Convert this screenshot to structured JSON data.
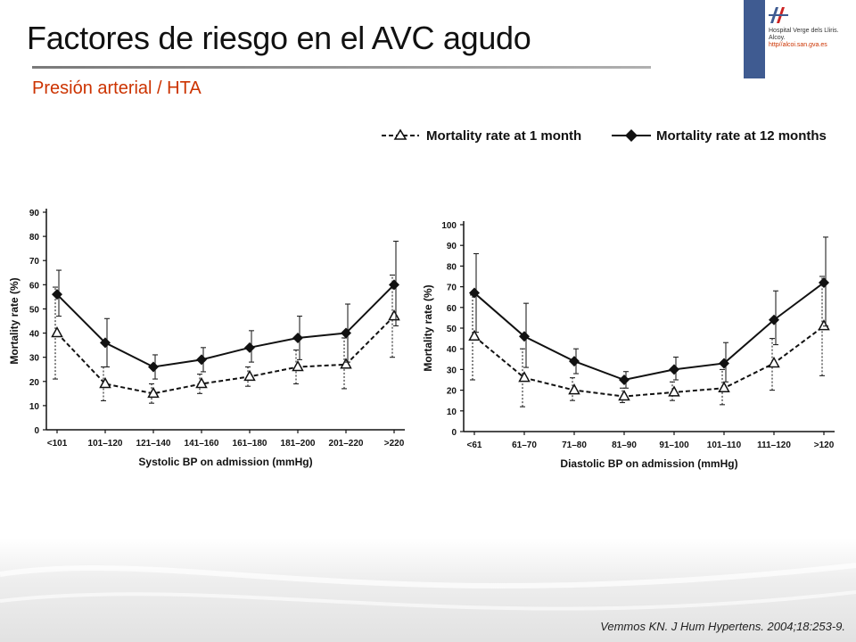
{
  "slide": {
    "title": "Factores de riesgo en el AVC agudo",
    "subtitle": "Presión arterial / HTA",
    "citation": "Vemmos KN. J Hum Hypertens. 2004;18:253-9.",
    "title_rule_color": "#8a8a8a",
    "subtitle_color": "#cc3300"
  },
  "logo": {
    "line1": "Hospital Verge dels Lliris.",
    "line2": "Alcoy.",
    "url": "http//alcoi.san.gva.es",
    "icon": "hospital-logo-icon",
    "color": "#3f5b91"
  },
  "legend": {
    "items": [
      {
        "label": "Mortality rate at 1 month",
        "marker": "open-triangle"
      },
      {
        "label": "Mortality rate at 12 months",
        "marker": "filled-diamond"
      }
    ]
  },
  "chart_data": [
    {
      "type": "line",
      "xlabel": "Systolic BP on admission (mmHg)",
      "ylabel": "Mortality rate (%)",
      "categories": [
        "<101",
        "101–120",
        "121–140",
        "141–160",
        "161–180",
        "181–200",
        "201–220",
        ">220"
      ],
      "ylim": [
        0,
        90
      ],
      "yticks": [
        0,
        10,
        20,
        30,
        40,
        50,
        60,
        70,
        80,
        90
      ],
      "grid": false,
      "legend_position": "top-right",
      "series": [
        {
          "name": "Mortality rate at 1 month",
          "marker": "open-triangle",
          "line": "dashed",
          "values": [
            40,
            19,
            15,
            19,
            22,
            26,
            27,
            47
          ],
          "err_low": [
            21,
            12,
            11,
            15,
            18,
            19,
            17,
            30
          ],
          "err_high": [
            59,
            26,
            19,
            23,
            26,
            33,
            38,
            64
          ]
        },
        {
          "name": "Mortality rate at 12 months",
          "marker": "filled-diamond",
          "line": "solid",
          "values": [
            56,
            36,
            26,
            29,
            34,
            38,
            40,
            60
          ],
          "err_low": [
            47,
            26,
            21,
            24,
            28,
            29,
            28,
            43
          ],
          "err_high": [
            66,
            46,
            31,
            34,
            41,
            47,
            52,
            78
          ]
        }
      ]
    },
    {
      "type": "line",
      "xlabel": "Diastolic BP on admission (mmHg)",
      "ylabel": "Mortality rate (%)",
      "categories": [
        "<61",
        "61–70",
        "71–80",
        "81–90",
        "91–100",
        "101–110",
        "111–120",
        ">120"
      ],
      "ylim": [
        0,
        100
      ],
      "yticks": [
        0,
        10,
        20,
        30,
        40,
        50,
        60,
        70,
        80,
        90,
        100
      ],
      "grid": false,
      "legend_position": "top-right",
      "series": [
        {
          "name": "Mortality rate at 1 month",
          "marker": "open-triangle",
          "line": "dashed",
          "values": [
            46,
            26,
            20,
            17,
            19,
            21,
            33,
            51
          ],
          "err_low": [
            25,
            12,
            15,
            14,
            15,
            13,
            20,
            27
          ],
          "err_high": [
            66,
            40,
            26,
            21,
            24,
            30,
            45,
            75
          ]
        },
        {
          "name": "Mortality rate at 12 months",
          "marker": "filled-diamond",
          "line": "solid",
          "values": [
            67,
            46,
            34,
            25,
            30,
            33,
            54,
            72
          ],
          "err_low": [
            48,
            31,
            28,
            21,
            25,
            24,
            42,
            51
          ],
          "err_high": [
            86,
            62,
            40,
            29,
            36,
            43,
            68,
            94
          ]
        }
      ]
    }
  ]
}
